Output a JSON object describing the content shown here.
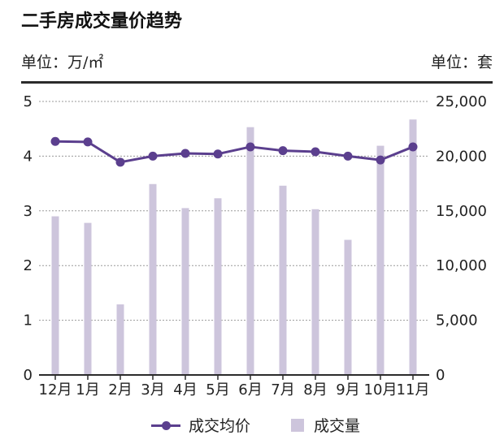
{
  "title": "二手房成交量价趋势",
  "unit_left": "单位：万/㎡",
  "unit_right": "单位：套",
  "colors": {
    "line": "#5b3f8e",
    "bar": "#cdc5dc",
    "grid": "#9a9a9a",
    "axis": "#2b2b2b"
  },
  "legend": {
    "line_label": "成交均价",
    "bar_label": "成交量"
  },
  "chart_data": {
    "type": "bar+line",
    "categories": [
      "12月",
      "1月",
      "2月",
      "3月",
      "4月",
      "5月",
      "6月",
      "7月",
      "8月",
      "9月",
      "10月",
      "11月"
    ],
    "series": [
      {
        "name": "成交均价",
        "type": "line",
        "axis": "left",
        "values": [
          4.27,
          4.26,
          3.89,
          4.0,
          4.05,
          4.04,
          4.17,
          4.1,
          4.08,
          4.0,
          3.93,
          4.17
        ]
      },
      {
        "name": "成交量",
        "type": "bar",
        "axis": "right",
        "values": [
          14500,
          13900,
          6450,
          17450,
          15250,
          16150,
          22650,
          17300,
          15150,
          12350,
          20950,
          23350
        ]
      }
    ],
    "y_left": {
      "min": 0,
      "max": 5,
      "ticks": [
        "0",
        "1",
        "2",
        "3",
        "4",
        "5"
      ]
    },
    "y_right": {
      "min": 0,
      "max": 25000,
      "ticks": [
        "0",
        "5,000",
        "10,000",
        "15,000",
        "20,000",
        "25,000"
      ]
    },
    "grid": true,
    "legend_position": "bottom"
  }
}
